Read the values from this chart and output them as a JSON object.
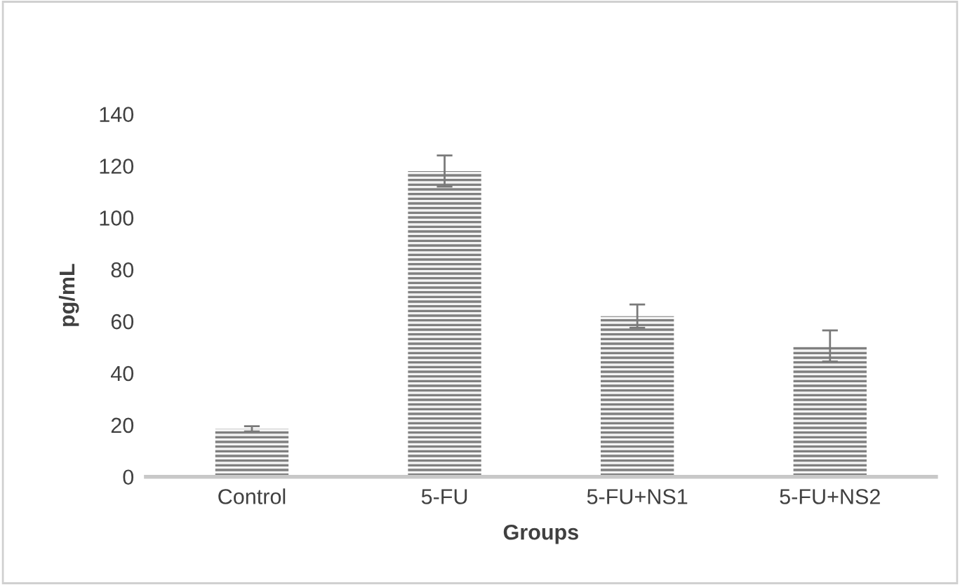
{
  "chart_data": {
    "type": "bar",
    "xlabel": "Groups",
    "ylabel": "pg/mL",
    "categories": [
      "Control",
      "5-FU",
      "5-FU+NS1",
      "5-FU+NS2"
    ],
    "values": [
      18.5,
      118,
      62,
      50.5
    ],
    "errors": [
      1,
      6,
      4.5,
      6
    ],
    "color": "#808080",
    "ylim": [
      0,
      140
    ],
    "yticks": [
      0,
      20,
      40,
      60,
      80,
      100,
      120,
      140
    ],
    "grid": false
  }
}
